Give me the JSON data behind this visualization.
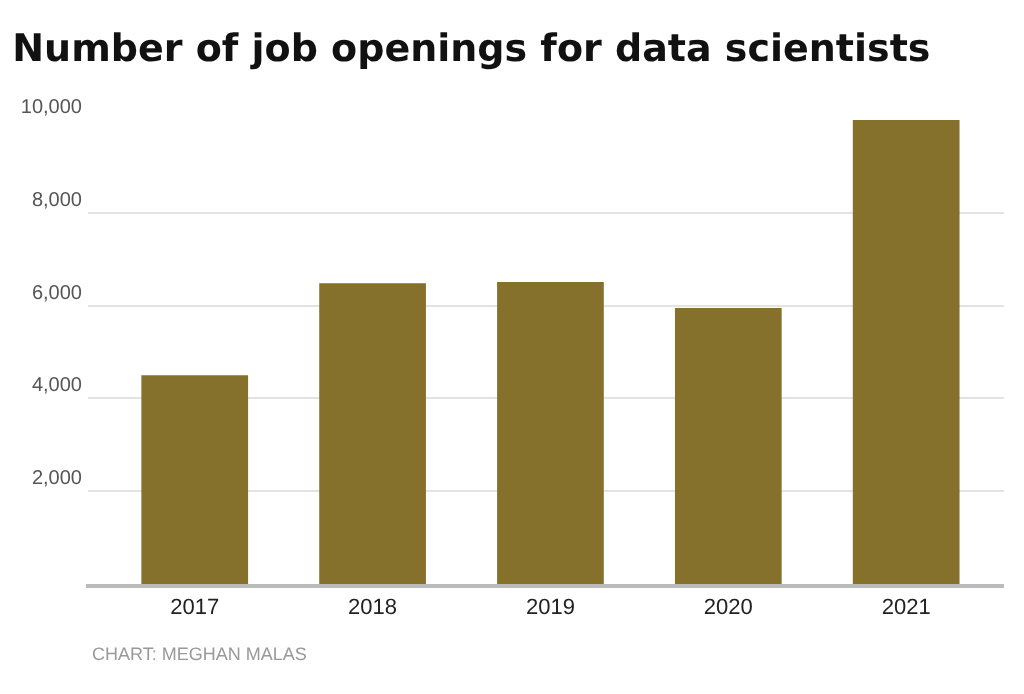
{
  "chart_data": {
    "type": "bar",
    "title": "Number of job openings for data scientists",
    "categories": [
      "2017",
      "2018",
      "2019",
      "2020",
      "2021"
    ],
    "values": [
      4500,
      6480,
      6510,
      5950,
      10000
    ],
    "color": "#85712b",
    "ylim": [
      0,
      10000
    ],
    "yticks": [
      {
        "value": 2000,
        "label": "2,000"
      },
      {
        "value": 4000,
        "label": "4,000"
      },
      {
        "value": 6000,
        "label": "6,000"
      },
      {
        "value": 8000,
        "label": "8,000"
      },
      {
        "value": 10000,
        "label": "10,000"
      }
    ],
    "grid": "y",
    "annotations": [
      "CHART: MEGHAN MALAS"
    ]
  }
}
